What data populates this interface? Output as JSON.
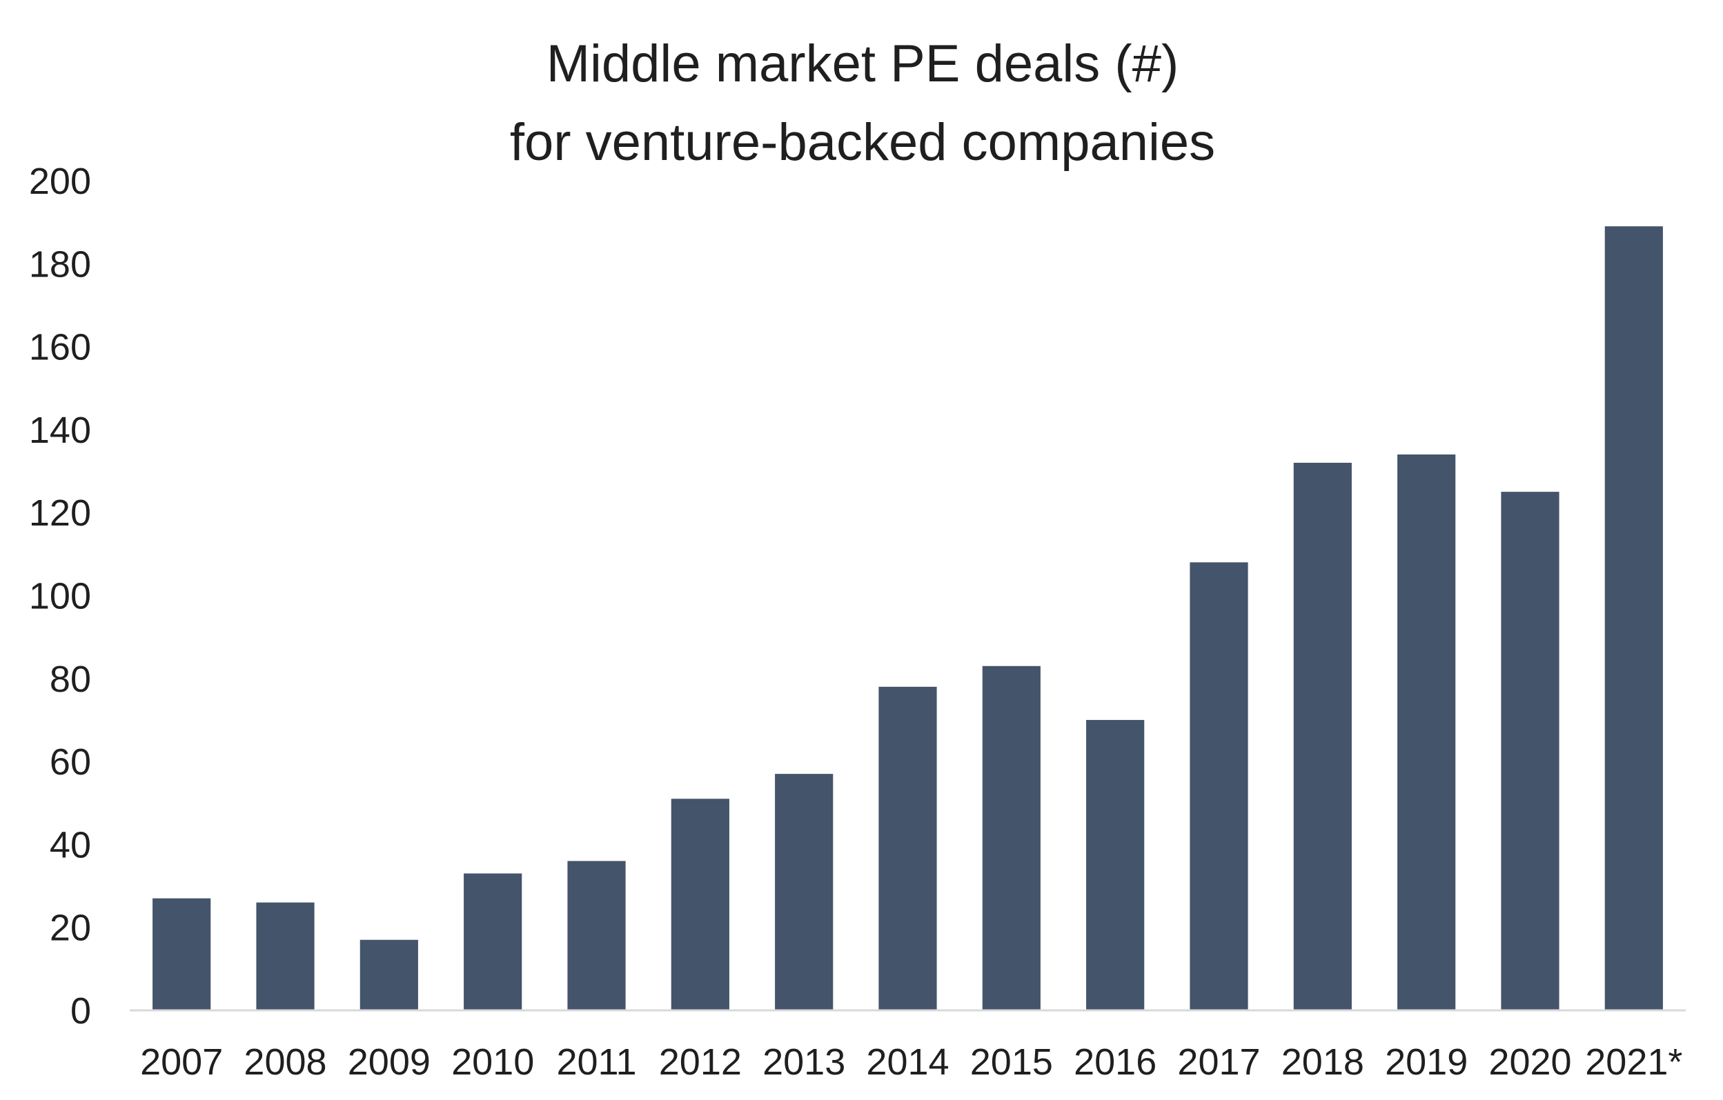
{
  "chart_data": {
    "type": "bar",
    "title": "Middle market PE deals (#)",
    "subtitle": "for venture-backed companies",
    "xlabel": "",
    "ylabel": "",
    "categories": [
      "2007",
      "2008",
      "2009",
      "2010",
      "2011",
      "2012",
      "2013",
      "2014",
      "2015",
      "2016",
      "2017",
      "2018",
      "2019",
      "2020",
      "2021*"
    ],
    "values": [
      27,
      26,
      17,
      33,
      36,
      51,
      57,
      78,
      83,
      70,
      108,
      132,
      134,
      125,
      189
    ],
    "ylim": [
      0,
      200
    ],
    "yticks": [
      0,
      20,
      40,
      60,
      80,
      100,
      120,
      140,
      160,
      180,
      200
    ],
    "grid": false,
    "legend": "none",
    "colors": {
      "bar": "#44546a",
      "axis": "#d9d9d9",
      "text": "#1f1f1f"
    }
  }
}
